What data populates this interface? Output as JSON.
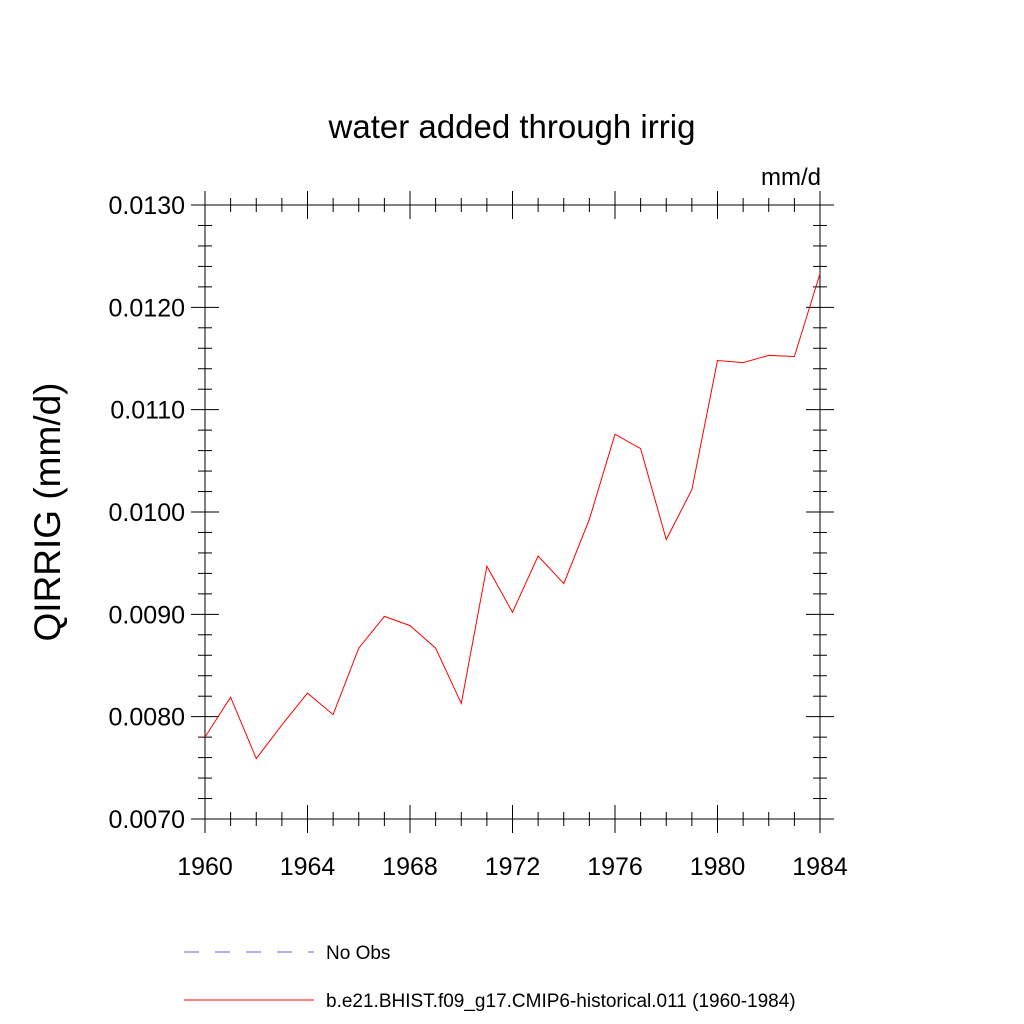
{
  "chart_data": {
    "type": "line",
    "title": "water added through irrig",
    "units": "mm/d",
    "xlabel": "",
    "ylabel": "QIRRIG  (mm/d)",
    "xlim": [
      1960,
      1984
    ],
    "ylim": [
      0.007,
      0.013
    ],
    "x_ticks": [
      {
        "value": 1960,
        "label": "1960"
      },
      {
        "value": 1964,
        "label": "1964"
      },
      {
        "value": 1968,
        "label": "1968"
      },
      {
        "value": 1972,
        "label": "1972"
      },
      {
        "value": 1976,
        "label": "1976"
      },
      {
        "value": 1980,
        "label": "1980"
      },
      {
        "value": 1984,
        "label": "1984"
      }
    ],
    "y_ticks": [
      {
        "value": 0.007,
        "label": "0.0070"
      },
      {
        "value": 0.008,
        "label": "0.0080"
      },
      {
        "value": 0.009,
        "label": "0.0090"
      },
      {
        "value": 0.01,
        "label": "0.0100"
      },
      {
        "value": 0.011,
        "label": "0.0110"
      },
      {
        "value": 0.012,
        "label": "0.0120"
      },
      {
        "value": 0.013,
        "label": "0.0130"
      }
    ],
    "grid": false,
    "legend_position": "bottom",
    "series": [
      {
        "name": "b.e21.BHIST.f09_g17.CMIP6-historical.011 (1960-1984)",
        "color": "#ff0000",
        "style": "solid",
        "x": [
          1960,
          1961,
          1962,
          1963,
          1964,
          1965,
          1966,
          1967,
          1968,
          1969,
          1970,
          1971,
          1972,
          1973,
          1974,
          1975,
          1976,
          1977,
          1978,
          1979,
          1980,
          1981,
          1982,
          1983,
          1984
        ],
        "y": [
          0.0078,
          0.00819,
          0.00759,
          0.00792,
          0.00823,
          0.00802,
          0.00867,
          0.00898,
          0.00889,
          0.00867,
          0.00813,
          0.00947,
          0.00902,
          0.00957,
          0.0093,
          0.00993,
          0.01076,
          0.01062,
          0.00973,
          0.01022,
          0.01148,
          0.01146,
          0.01153,
          0.01152,
          0.01233
        ]
      }
    ],
    "legend": [
      {
        "label": "No Obs",
        "color": "#6666cc",
        "style": "dashed"
      },
      {
        "label": "b.e21.BHIST.f09_g17.CMIP6-historical.011 (1960-1984)",
        "color": "#ff0000",
        "style": "solid"
      }
    ]
  }
}
